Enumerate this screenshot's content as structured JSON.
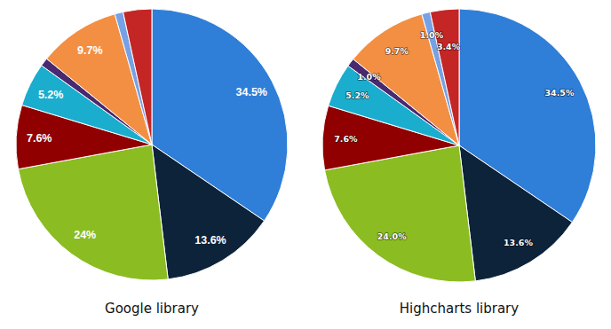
{
  "chart_data": [
    {
      "type": "pie",
      "title": "Google library",
      "values": [
        34.5,
        13.6,
        24,
        7.6,
        5.2,
        1.0,
        9.7,
        1.0,
        3.4
      ],
      "value_labels": [
        "34.5%",
        "13.6%",
        "24%",
        "7.6%",
        "5.2%",
        null,
        "9.7%",
        null,
        null
      ],
      "colors": [
        "#2f7ed8",
        "#0d233a",
        "#8bbc21",
        "#910000",
        "#1aadce",
        "#492970",
        "#f28f43",
        "#77a1e5",
        "#c42525"
      ],
      "data_labels": true
    },
    {
      "type": "pie",
      "title": "Highcharts library",
      "values": [
        34.5,
        13.6,
        24.0,
        7.6,
        5.2,
        1.0,
        9.7,
        1.0,
        3.4
      ],
      "value_labels": [
        "34.5%",
        "13.6%",
        "24.0%",
        "7.6%",
        "5.2%",
        "1.0%",
        "9.7%",
        "1.0%",
        "3.4%"
      ],
      "colors": [
        "#2f7ed8",
        "#0d233a",
        "#8bbc21",
        "#910000",
        "#1aadce",
        "#492970",
        "#f28f43",
        "#77a1e5",
        "#c42525"
      ],
      "data_labels": true
    }
  ]
}
